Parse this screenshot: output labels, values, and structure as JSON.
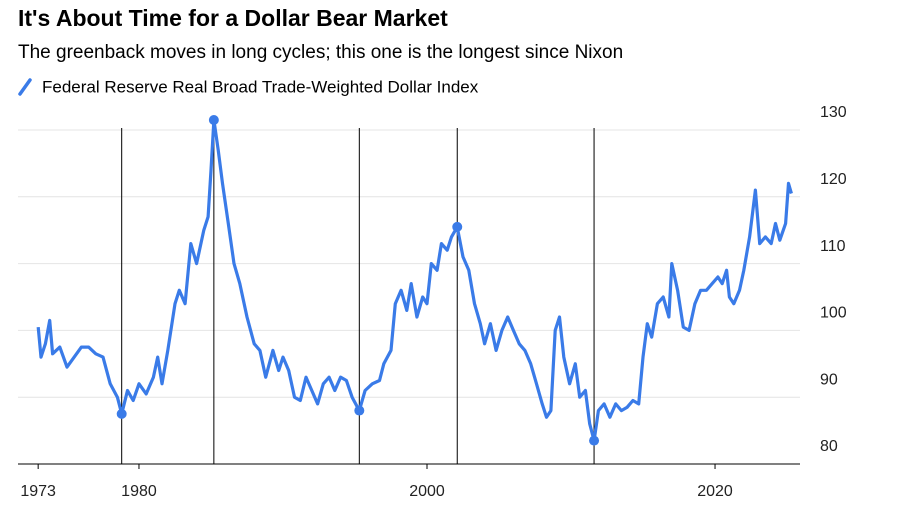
{
  "chart_data": {
    "type": "line",
    "title": "It's About Time for a Dollar Bear Market",
    "subtitle": "The greenback moves in long cycles; this one is the longest since Nixon",
    "series": [
      {
        "name": "Federal Reserve Real Broad Trade-Weighted Dollar Index",
        "color": "#3a7be8",
        "x": [
          1973.0,
          1973.2,
          1973.5,
          1973.8,
          1974.0,
          1974.5,
          1975.0,
          1975.5,
          1976.0,
          1976.5,
          1977.0,
          1977.5,
          1978.0,
          1978.5,
          1978.8,
          1979.2,
          1979.6,
          1980.0,
          1980.5,
          1981.0,
          1981.3,
          1981.6,
          1982.0,
          1982.5,
          1982.8,
          1983.2,
          1983.6,
          1984.0,
          1984.5,
          1984.8,
          1985.0,
          1985.2,
          1985.5,
          1985.8,
          1986.2,
          1986.6,
          1987.0,
          1987.5,
          1988.0,
          1988.4,
          1988.8,
          1989.3,
          1989.7,
          1990.0,
          1990.4,
          1990.8,
          1991.2,
          1991.6,
          1992.0,
          1992.4,
          1992.8,
          1993.2,
          1993.6,
          1994.0,
          1994.4,
          1994.8,
          1995.3,
          1995.7,
          1996.2,
          1996.7,
          1997.0,
          1997.5,
          1997.8,
          1998.2,
          1998.6,
          1998.9,
          1999.3,
          1999.7,
          2000.0,
          2000.3,
          2000.7,
          2001.0,
          2001.4,
          2001.7,
          2002.1,
          2002.5,
          2002.9,
          2003.3,
          2003.7,
          2004.0,
          2004.4,
          2004.8,
          2005.2,
          2005.6,
          2006.0,
          2006.4,
          2006.8,
          2007.2,
          2007.6,
          2008.0,
          2008.3,
          2008.6,
          2008.9,
          2009.2,
          2009.5,
          2009.9,
          2010.3,
          2010.6,
          2011.0,
          2011.3,
          2011.6,
          2011.9,
          2012.3,
          2012.7,
          2013.1,
          2013.5,
          2013.9,
          2014.3,
          2014.7,
          2015.0,
          2015.3,
          2015.6,
          2016.0,
          2016.4,
          2016.8,
          2017.0,
          2017.4,
          2017.8,
          2018.2,
          2018.6,
          2019.0,
          2019.4,
          2019.8,
          2020.2,
          2020.5,
          2020.8,
          2021.0,
          2021.3,
          2021.7,
          2022.0,
          2022.4,
          2022.8,
          2023.1,
          2023.5,
          2023.9,
          2024.2,
          2024.5,
          2024.9,
          2025.1,
          2025.3
        ],
        "values": [
          100.5,
          96,
          98,
          101.5,
          96.5,
          97.5,
          94.5,
          96,
          97.5,
          97.5,
          96.5,
          96,
          92,
          90,
          87.5,
          91,
          89.5,
          92,
          90.5,
          93,
          96,
          92,
          97,
          104,
          106,
          104,
          113,
          110,
          115,
          117,
          124,
          131.5,
          127,
          122,
          116,
          110,
          107,
          102,
          98,
          97,
          93,
          97,
          94,
          96,
          94,
          90,
          89.5,
          93,
          91,
          89,
          92,
          93,
          91,
          93,
          92.5,
          90,
          88,
          91,
          92,
          92.5,
          95,
          97,
          104,
          106,
          103,
          107,
          102,
          105,
          104,
          110,
          109,
          113,
          112,
          114,
          115.5,
          111,
          109,
          104,
          101,
          98,
          101,
          97,
          100,
          102,
          100,
          98,
          97,
          95,
          92,
          89,
          87,
          88,
          100,
          102,
          96,
          92,
          95,
          90,
          91,
          86,
          83.5,
          88,
          89,
          87,
          89,
          88,
          88.5,
          89.5,
          89,
          96,
          101,
          99,
          104,
          105,
          102,
          110,
          106,
          100.5,
          100,
          104,
          106,
          106,
          107,
          108,
          107,
          109,
          105,
          104,
          106,
          109,
          114,
          121,
          113,
          114,
          113,
          116,
          113.5,
          116,
          122,
          120.5
        ]
      }
    ],
    "turning_points": {
      "x": [
        1978.8,
        1985.2,
        1995.3,
        2002.1,
        2011.6
      ],
      "values": [
        87.5,
        131.5,
        88,
        115.5,
        83.5
      ]
    },
    "xlim": [
      1971.6,
      2025.9
    ],
    "xticks": [
      1973,
      1980,
      2000,
      2020
    ],
    "ylim": [
      80,
      130
    ],
    "yticks": [
      80,
      90,
      100,
      110,
      120,
      130
    ],
    "grid": true
  }
}
